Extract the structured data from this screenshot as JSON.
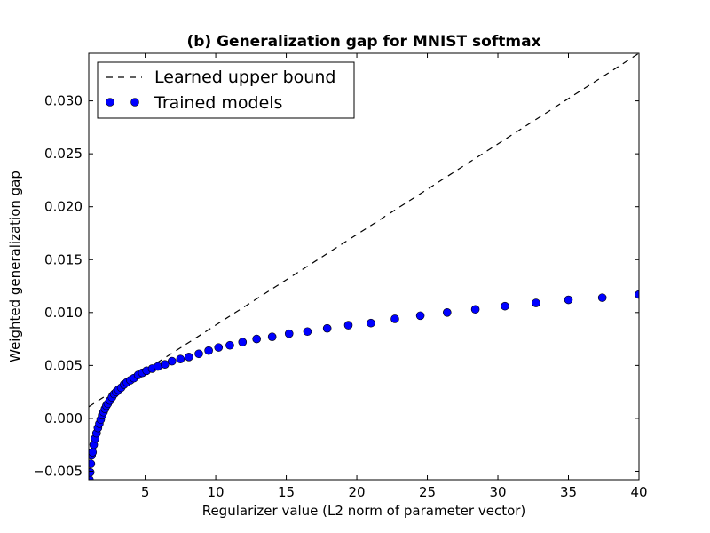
{
  "chart_data": {
    "type": "scatter",
    "title": "(b) Generalization gap for MNIST softmax",
    "xlabel": "Regularizer value (L2 norm of parameter vector)",
    "ylabel": "Weighted generalization gap",
    "xlim": [
      1,
      40
    ],
    "ylim": [
      -0.0058,
      0.0345
    ],
    "xticks": [
      5,
      10,
      15,
      20,
      25,
      30,
      35,
      40
    ],
    "xtick_labels": [
      "5",
      "10",
      "15",
      "20",
      "25",
      "30",
      "35",
      "40"
    ],
    "yticks": [
      -0.005,
      0.0,
      0.005,
      0.01,
      0.015,
      0.02,
      0.025,
      0.03
    ],
    "ytick_labels": [
      "−0.005",
      "0.000",
      "0.005",
      "0.010",
      "0.015",
      "0.020",
      "0.025",
      "0.030"
    ],
    "grid": false,
    "legend_position": "top-left",
    "series": [
      {
        "name": "Learned upper bound",
        "kind": "line",
        "style": "dashed",
        "color": "#000000",
        "x": [
          1,
          40
        ],
        "y": [
          0.0011,
          0.0345
        ]
      },
      {
        "name": "Trained models",
        "kind": "scatter",
        "marker": "circle",
        "color": "#0000ff",
        "x": [
          1.05,
          1.1,
          1.15,
          1.2,
          1.27,
          1.35,
          1.45,
          1.55,
          1.65,
          1.75,
          1.85,
          1.95,
          2.05,
          2.15,
          2.25,
          2.35,
          2.5,
          2.65,
          2.8,
          2.95,
          3.1,
          3.3,
          3.5,
          3.7,
          3.95,
          4.2,
          4.5,
          4.8,
          5.1,
          5.5,
          5.9,
          6.4,
          6.9,
          7.5,
          8.1,
          8.8,
          9.5,
          10.2,
          11.0,
          11.9,
          12.9,
          14.0,
          15.2,
          16.5,
          17.9,
          19.4,
          21.0,
          22.7,
          24.5,
          26.4,
          28.4,
          30.5,
          32.7,
          35.0,
          37.4,
          40.0
        ],
        "y": [
          -0.0058,
          -0.0051,
          -0.0043,
          -0.0035,
          -0.0032,
          -0.0025,
          -0.0019,
          -0.0014,
          -0.0009,
          -0.0005,
          -0.0001,
          0.0003,
          0.0006,
          0.0009,
          0.0012,
          0.0014,
          0.0017,
          0.002,
          0.0023,
          0.0025,
          0.0027,
          0.0029,
          0.0032,
          0.0034,
          0.0036,
          0.0038,
          0.0041,
          0.0043,
          0.0045,
          0.0047,
          0.0049,
          0.0051,
          0.0054,
          0.0056,
          0.0058,
          0.0061,
          0.0064,
          0.0067,
          0.0069,
          0.0072,
          0.0075,
          0.0077,
          0.008,
          0.0082,
          0.0085,
          0.0088,
          0.009,
          0.0094,
          0.0097,
          0.01,
          0.0103,
          0.0106,
          0.0109,
          0.0112,
          0.0114,
          0.0117
        ]
      }
    ]
  }
}
